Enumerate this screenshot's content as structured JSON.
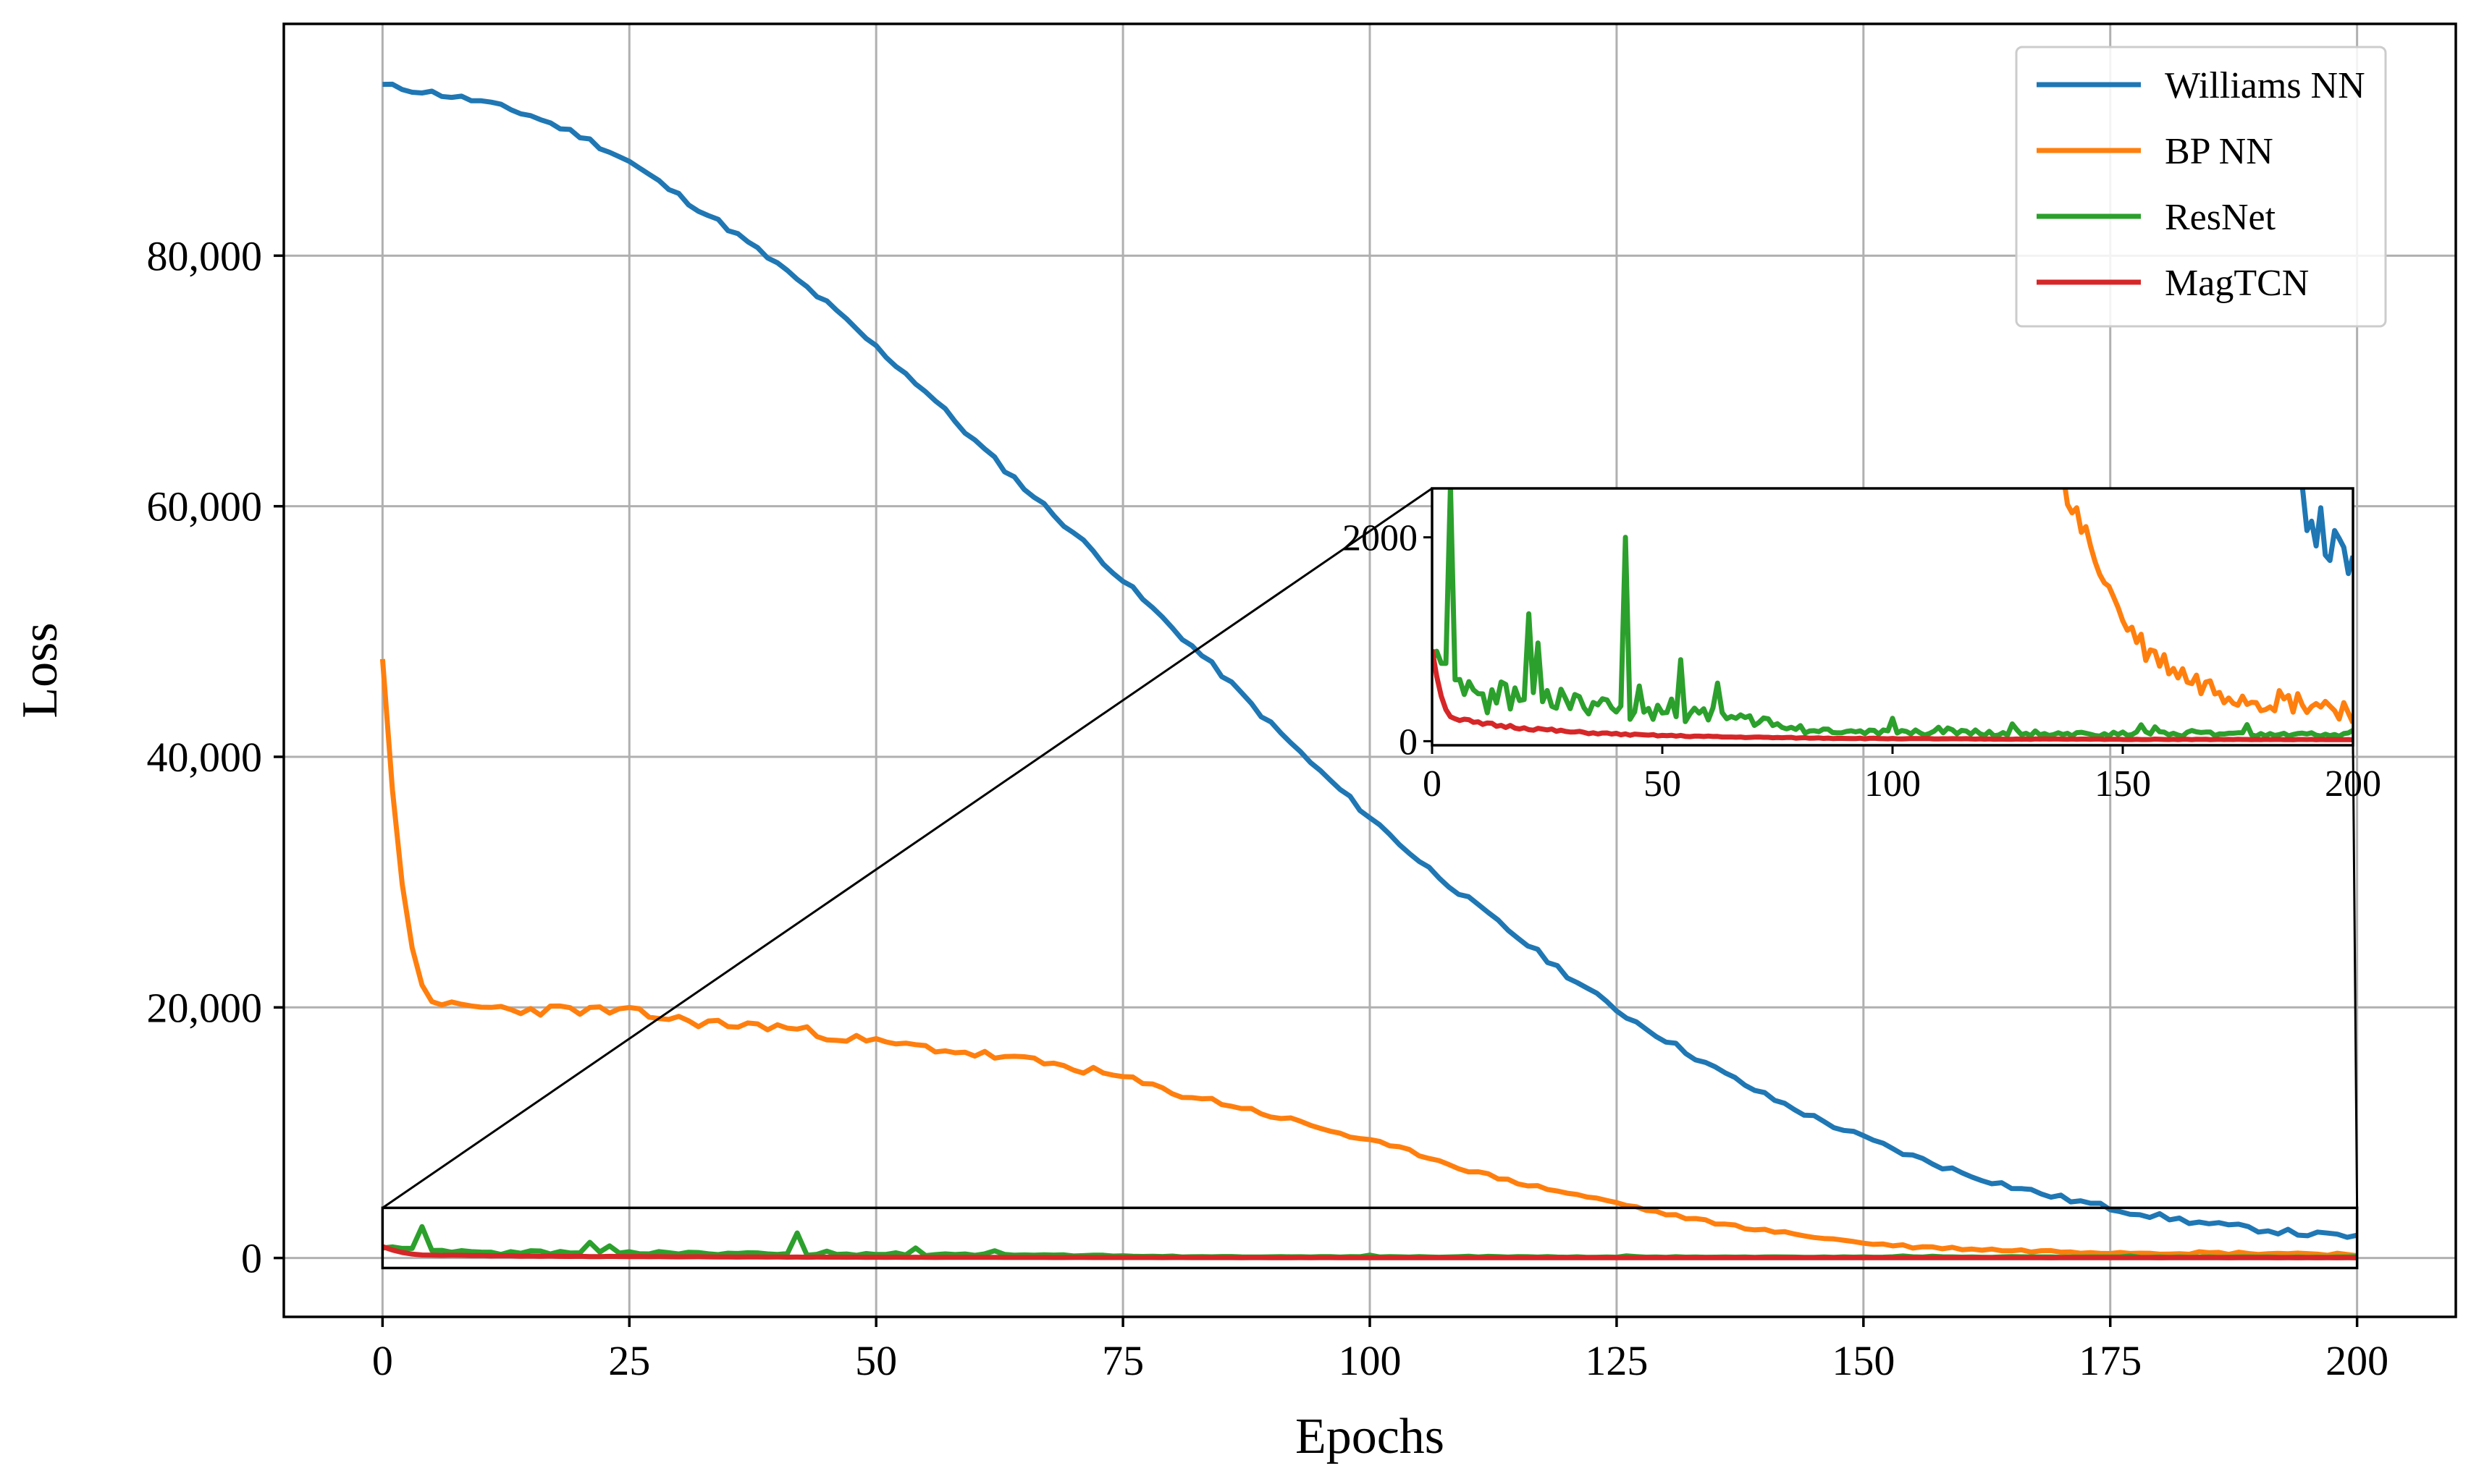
{
  "chart_data": {
    "type": "line",
    "title": "",
    "xlabel": "Epochs",
    "ylabel": "Loss",
    "xlim": [
      -10,
      210
    ],
    "ylim": [
      -4700,
      98500
    ],
    "xticks": [
      0,
      25,
      50,
      75,
      100,
      125,
      150,
      175,
      200
    ],
    "xtick_labels": [
      "0",
      "25",
      "50",
      "75",
      "100",
      "125",
      "150",
      "175",
      "200"
    ],
    "yticks": [
      0,
      20000,
      40000,
      60000,
      80000
    ],
    "ytick_labels": [
      "0",
      "20,000",
      "40,000",
      "60,000",
      "80,000"
    ],
    "grid": true,
    "legend_position": "top-right",
    "x": [
      0,
      5,
      10,
      15,
      20,
      25,
      30,
      35,
      40,
      45,
      50,
      55,
      60,
      65,
      70,
      75,
      80,
      85,
      90,
      95,
      100,
      105,
      110,
      115,
      120,
      125,
      130,
      135,
      140,
      145,
      150,
      155,
      160,
      165,
      170,
      175,
      180,
      185,
      190,
      195,
      200
    ],
    "series": [
      {
        "name": "Williams NN",
        "color": "#1f77b4",
        "values": [
          93600,
          93000,
          92300,
          91200,
          89600,
          87500,
          84800,
          82200,
          79300,
          76200,
          72700,
          69200,
          65200,
          61500,
          57900,
          54100,
          50300,
          46600,
          42600,
          38800,
          35200,
          31700,
          28600,
          25600,
          22600,
          19800,
          17400,
          15100,
          13000,
          11200,
          9600,
          8100,
          6800,
          5700,
          4800,
          4000,
          3300,
          2700,
          2300,
          1900,
          1700
        ]
      },
      {
        "name": "BP NN",
        "color": "#ff7f0e",
        "values": [
          47800,
          20200,
          20000,
          19800,
          19800,
          19600,
          19000,
          18600,
          18500,
          17800,
          17200,
          16800,
          16300,
          15800,
          15200,
          14400,
          13200,
          12400,
          11400,
          10400,
          9300,
          8300,
          7000,
          6000,
          5200,
          4400,
          3500,
          2800,
          2200,
          1700,
          1200,
          900,
          750,
          600,
          520,
          460,
          420,
          400,
          380,
          350,
          300
        ]
      },
      {
        "name": "ResNet",
        "color": "#2ca02c",
        "values": [
          700,
          500,
          400,
          450,
          420,
          400,
          380,
          360,
          340,
          320,
          300,
          280,
          260,
          240,
          230,
          120,
          110,
          100,
          100,
          95,
          90,
          90,
          85,
          85,
          80,
          80,
          80,
          75,
          75,
          75,
          70,
          70,
          70,
          70,
          70,
          65,
          65,
          65,
          65,
          65,
          60
        ]
      },
      {
        "name": "MagTCN",
        "color": "#d62728",
        "values": [
          900,
          220,
          170,
          150,
          130,
          110,
          90,
          80,
          70,
          60,
          55,
          50,
          45,
          40,
          38,
          35,
          32,
          30,
          28,
          26,
          25,
          24,
          23,
          22,
          21,
          20,
          20,
          20,
          19,
          19,
          18,
          18,
          18,
          17,
          17,
          17,
          16,
          16,
          16,
          15,
          15
        ]
      }
    ],
    "resnet_spikes": [
      {
        "x": 4,
        "y": 2500
      },
      {
        "x": 21,
        "y": 1250
      },
      {
        "x": 42,
        "y": 2000
      },
      {
        "x": 54,
        "y": 800
      }
    ],
    "inset": {
      "xlim": [
        0,
        200
      ],
      "ylim": [
        -40,
        2480
      ],
      "xticks": [
        0,
        50,
        100,
        150,
        200
      ],
      "xtick_labels": [
        "0",
        "50",
        "100",
        "150",
        "200"
      ],
      "yticks": [
        0,
        2000
      ],
      "ytick_labels": [
        "0",
        "2000"
      ],
      "zoom_region": {
        "x": [
          0,
          200
        ],
        "y": [
          -800,
          4000
        ]
      },
      "grid": false
    }
  }
}
